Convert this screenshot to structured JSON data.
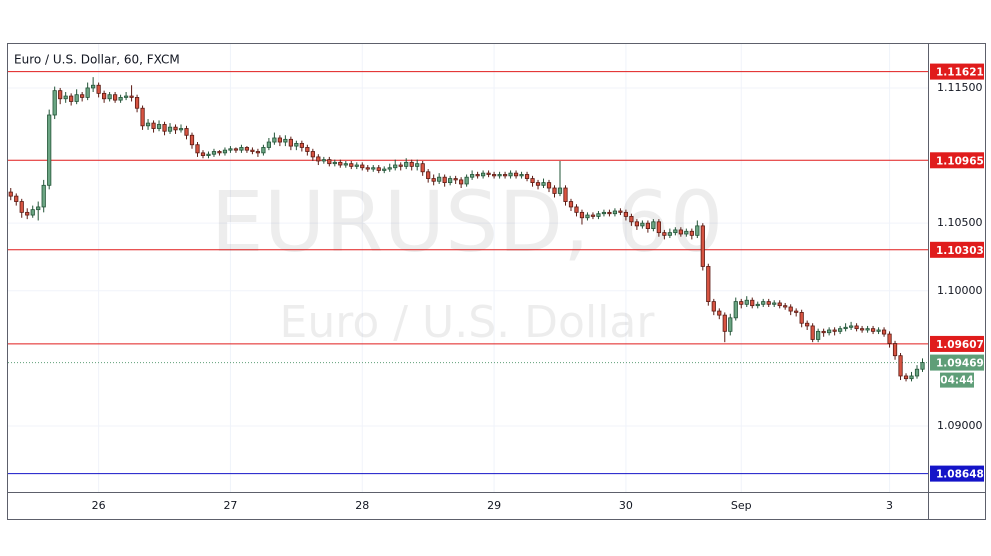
{
  "chart_data": {
    "type": "candlestick",
    "title": "Euro / U.S. Dollar, 60, FXCM",
    "watermark": "EURUSD, 60",
    "watermark_subtitle": "Euro / U.S. Dollar",
    "up_color": "#6ba583",
    "down_color": "#d75442",
    "grid": true,
    "xlim": [
      -0.5,
      167
    ],
    "xticks": [
      {
        "value": 16,
        "label": "26"
      },
      {
        "value": 40,
        "label": "27"
      },
      {
        "value": 64,
        "label": "28"
      },
      {
        "value": 88,
        "label": "29"
      },
      {
        "value": 112,
        "label": "30"
      },
      {
        "value": 133,
        "label": "Sep"
      },
      {
        "value": 160,
        "label": "3"
      }
    ],
    "ylim": [
      1.08512,
      1.11825
    ],
    "yticks": [
      {
        "value": 1.115,
        "label": "1.11500"
      },
      {
        "value": 1.105,
        "label": "1.10500"
      },
      {
        "value": 1.1,
        "label": "1.10000"
      },
      {
        "value": 1.09,
        "label": "1.09000"
      }
    ],
    "levels": [
      {
        "value": 1.11621,
        "color": "#e01c1c"
      },
      {
        "value": 1.10965,
        "color": "#e01c1c"
      },
      {
        "value": 1.10303,
        "color": "#e01c1c"
      },
      {
        "value": 1.09607,
        "color": "#e01c1c"
      },
      {
        "value": 1.08648,
        "color": "#1414c8"
      }
    ],
    "last_price_color": "#5f9e78",
    "countdown": "04:44",
    "open": [
      1.1073,
      1.107,
      1.1066,
      1.1058,
      1.1056,
      1.106,
      1.1062,
      1.1078,
      1.113,
      1.1148,
      1.1142,
      1.1144,
      1.114,
      1.1145,
      1.1143,
      1.115,
      1.1152,
      1.1146,
      1.1142,
      1.1145,
      1.1141,
      1.1143,
      1.1144,
      1.1143,
      1.1135,
      1.1122,
      1.1124,
      1.112,
      1.1123,
      1.1118,
      1.1121,
      1.1119,
      1.112,
      1.1115,
      1.1108,
      1.1102,
      1.11,
      1.1101,
      1.1103,
      1.1102,
      1.1104,
      1.1105,
      1.1104,
      1.1106,
      1.1104,
      1.1103,
      1.1102,
      1.1106,
      1.111,
      1.1113,
      1.111,
      1.1112,
      1.1107,
      1.1109,
      1.1106,
      1.1103,
      1.1099,
      1.1096,
      1.1097,
      1.1094,
      1.1095,
      1.1093,
      1.1094,
      1.1092,
      1.1093,
      1.1091,
      1.109,
      1.1091,
      1.1089,
      1.109,
      1.1091,
      1.1093,
      1.1092,
      1.1095,
      1.1092,
      1.1094,
      1.1088,
      1.1083,
      1.1081,
      1.1084,
      1.108,
      1.1083,
      1.1082,
      1.1079,
      1.1084,
      1.1086,
      1.1085,
      1.1087,
      1.1086,
      1.1085,
      1.1086,
      1.1085,
      1.1087,
      1.1085,
      1.1086,
      1.1083,
      1.108,
      1.1078,
      1.108,
      1.1076,
      1.1072,
      1.1076,
      1.1066,
      1.1062,
      1.1058,
      1.1054,
      1.1056,
      1.1055,
      1.1057,
      1.1058,
      1.1057,
      1.1059,
      1.1058,
      1.1055,
      1.1051,
      1.1048,
      1.105,
      1.1046,
      1.1051,
      1.1043,
      1.1041,
      1.1043,
      1.1045,
      1.1042,
      1.1044,
      1.1041,
      1.1048,
      1.1018,
      1.0992,
      1.0985,
      1.0982,
      1.097,
      1.098,
      1.0992,
      1.099,
      1.0993,
      1.0989,
      1.099,
      1.0992,
      1.099,
      1.0991,
      1.0989,
      1.0988,
      1.0985,
      1.0984,
      1.0976,
      1.0974,
      1.0964,
      1.097,
      1.0969,
      1.0971,
      1.097,
      1.0972,
      1.0973,
      1.0974,
      1.0972,
      1.0971,
      1.0972,
      1.097,
      1.0971,
      1.0968,
      1.0961,
      1.0952,
      1.0937,
      1.0935,
      1.0937,
      1.0942
    ],
    "high": [
      1.1076,
      1.1072,
      1.1068,
      1.1061,
      1.1063,
      1.1066,
      1.1082,
      1.1134,
      1.1151,
      1.115,
      1.1147,
      1.1146,
      1.1149,
      1.1147,
      1.1154,
      1.1158,
      1.1154,
      1.1148,
      1.1147,
      1.1147,
      1.1145,
      1.1147,
      1.1152,
      1.1145,
      1.1137,
      1.1127,
      1.1126,
      1.1126,
      1.1125,
      1.1124,
      1.1123,
      1.1123,
      1.1122,
      1.1117,
      1.111,
      1.1104,
      1.1103,
      1.1105,
      1.1104,
      1.1106,
      1.1107,
      1.1106,
      1.1108,
      1.1107,
      1.1106,
      1.1105,
      1.1108,
      1.1113,
      1.1117,
      1.1115,
      1.1115,
      1.1114,
      1.1111,
      1.1111,
      1.1108,
      1.1105,
      1.1101,
      1.1099,
      1.1099,
      1.1097,
      1.1097,
      1.1096,
      1.1096,
      1.1095,
      1.1095,
      1.1093,
      1.1093,
      1.1093,
      1.1092,
      1.1094,
      1.1097,
      1.1095,
      1.1098,
      1.1097,
      1.1097,
      1.1096,
      1.109,
      1.1086,
      1.1087,
      1.1086,
      1.1085,
      1.1085,
      1.1084,
      1.1086,
      1.1089,
      1.1088,
      1.1089,
      1.1089,
      1.1088,
      1.1088,
      1.1088,
      1.1089,
      1.1089,
      1.1088,
      1.1088,
      1.1085,
      1.1082,
      1.1083,
      1.1082,
      1.1078,
      1.1096,
      1.1078,
      1.1068,
      1.1064,
      1.106,
      1.1058,
      1.1058,
      1.1059,
      1.106,
      1.106,
      1.1061,
      1.1061,
      1.106,
      1.1057,
      1.1053,
      1.1052,
      1.1052,
      1.1053,
      1.1053,
      1.1045,
      1.1046,
      1.1047,
      1.1047,
      1.1046,
      1.1046,
      1.1052,
      1.105,
      1.102,
      1.0994,
      1.0987,
      1.0984,
      1.0983,
      1.0995,
      1.0994,
      1.0996,
      1.0995,
      1.0992,
      1.0994,
      1.0994,
      1.0993,
      1.0993,
      1.0991,
      1.099,
      1.0987,
      1.0986,
      1.0978,
      1.0976,
      1.0972,
      1.0972,
      1.0973,
      1.0973,
      1.0974,
      1.0976,
      1.0977,
      1.0976,
      1.0974,
      1.0974,
      1.0974,
      1.0973,
      1.0973,
      1.097,
      1.0963,
      1.0954,
      1.0939,
      1.094,
      1.0945,
      1.095
    ],
    "low": [
      1.1067,
      1.1063,
      1.1054,
      1.1053,
      1.1054,
      1.1052,
      1.1058,
      1.1075,
      1.1127,
      1.1138,
      1.1139,
      1.1137,
      1.1138,
      1.114,
      1.1141,
      1.1147,
      1.1143,
      1.1139,
      1.114,
      1.1139,
      1.1139,
      1.1141,
      1.114,
      1.1132,
      1.1119,
      1.1119,
      1.1117,
      1.1118,
      1.1115,
      1.1116,
      1.1116,
      1.1117,
      1.1112,
      1.1105,
      1.1099,
      1.1098,
      1.1098,
      1.1099,
      1.11,
      1.11,
      1.1102,
      1.1102,
      1.1102,
      1.1102,
      1.1101,
      1.1099,
      1.11,
      1.1104,
      1.1108,
      1.1107,
      1.1107,
      1.1104,
      1.1104,
      1.1103,
      1.11,
      1.1096,
      1.1093,
      1.1094,
      1.1092,
      1.1092,
      1.1091,
      1.1091,
      1.109,
      1.109,
      1.1089,
      1.1088,
      1.1088,
      1.1087,
      1.1087,
      1.1088,
      1.1089,
      1.1089,
      1.109,
      1.1089,
      1.1089,
      1.1085,
      1.108,
      1.1078,
      1.1079,
      1.1077,
      1.1078,
      1.1079,
      1.1076,
      1.1077,
      1.1082,
      1.1083,
      1.1083,
      1.1084,
      1.1083,
      1.1083,
      1.1083,
      1.1083,
      1.1083,
      1.1083,
      1.1081,
      1.1077,
      1.1075,
      1.1076,
      1.1073,
      1.1069,
      1.107,
      1.1063,
      1.1059,
      1.1055,
      1.1049,
      1.1052,
      1.1053,
      1.1053,
      1.1055,
      1.1055,
      1.1055,
      1.1056,
      1.1052,
      1.1048,
      1.1045,
      1.1046,
      1.1043,
      1.1044,
      1.104,
      1.1038,
      1.1039,
      1.1041,
      1.104,
      1.104,
      1.1038,
      1.1039,
      1.1015,
      1.0989,
      1.0982,
      1.0979,
      1.0962,
      1.0967,
      1.0978,
      1.0987,
      1.0988,
      1.0987,
      1.0987,
      1.0988,
      1.0988,
      1.0988,
      1.0987,
      1.0986,
      1.0982,
      1.0981,
      1.0973,
      1.0971,
      1.0962,
      1.0962,
      1.0966,
      1.0967,
      1.0967,
      1.0968,
      1.097,
      1.0971,
      1.097,
      1.0969,
      1.0969,
      1.0968,
      1.0968,
      1.0966,
      1.0958,
      1.0949,
      1.0934,
      1.0933,
      1.0933,
      1.0935,
      1.094
    ],
    "close": [
      1.107,
      1.1066,
      1.1058,
      1.1056,
      1.106,
      1.1062,
      1.1078,
      1.113,
      1.1148,
      1.1142,
      1.1144,
      1.114,
      1.1145,
      1.1143,
      1.115,
      1.1152,
      1.1146,
      1.1142,
      1.1145,
      1.1141,
      1.1143,
      1.1144,
      1.1143,
      1.1135,
      1.1122,
      1.1124,
      1.112,
      1.1123,
      1.1118,
      1.1121,
      1.1119,
      1.112,
      1.1115,
      1.1108,
      1.1102,
      1.11,
      1.1101,
      1.1103,
      1.1102,
      1.1104,
      1.1105,
      1.1104,
      1.1106,
      1.1104,
      1.1103,
      1.1102,
      1.1106,
      1.111,
      1.1113,
      1.111,
      1.1112,
      1.1107,
      1.1109,
      1.1106,
      1.1103,
      1.1099,
      1.1096,
      1.1097,
      1.1094,
      1.1095,
      1.1093,
      1.1094,
      1.1092,
      1.1093,
      1.1091,
      1.109,
      1.1091,
      1.1089,
      1.109,
      1.1091,
      1.1093,
      1.1092,
      1.1095,
      1.1092,
      1.1094,
      1.1088,
      1.1083,
      1.1081,
      1.1084,
      1.108,
      1.1083,
      1.1082,
      1.1079,
      1.1084,
      1.1086,
      1.1085,
      1.1087,
      1.1086,
      1.1085,
      1.1086,
      1.1085,
      1.1087,
      1.1085,
      1.1086,
      1.1083,
      1.108,
      1.1078,
      1.108,
      1.1076,
      1.1072,
      1.1076,
      1.1066,
      1.1062,
      1.1058,
      1.1054,
      1.1056,
      1.1055,
      1.1057,
      1.1058,
      1.1057,
      1.1059,
      1.1058,
      1.1055,
      1.1051,
      1.1048,
      1.105,
      1.1046,
      1.1051,
      1.1043,
      1.1041,
      1.1043,
      1.1045,
      1.1042,
      1.1044,
      1.1041,
      1.1048,
      1.1018,
      1.0992,
      1.0985,
      1.0982,
      1.097,
      1.098,
      1.0992,
      1.099,
      1.0993,
      1.0989,
      1.099,
      1.0992,
      1.099,
      1.0991,
      1.0989,
      1.0988,
      1.0985,
      1.0984,
      1.0976,
      1.0974,
      1.0964,
      1.097,
      1.0969,
      1.0971,
      1.097,
      1.0972,
      1.0973,
      1.0974,
      1.0972,
      1.0971,
      1.0972,
      1.097,
      1.0971,
      1.0968,
      1.0961,
      1.0952,
      1.0937,
      1.0935,
      1.0937,
      1.0942,
      1.09469
    ]
  }
}
